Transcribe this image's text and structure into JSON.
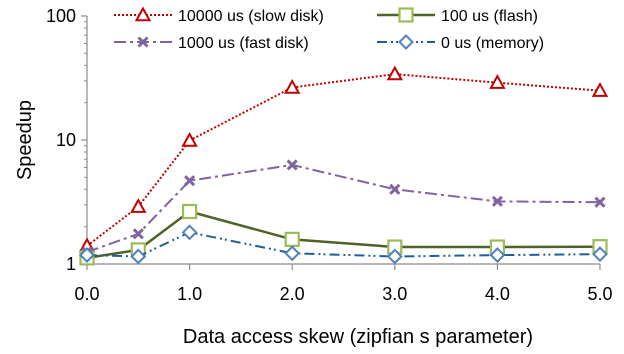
{
  "chart_data": {
    "type": "line",
    "title": "",
    "xlabel": "Data access skew (zipfian s parameter)",
    "ylabel": "Speedup",
    "x": [
      0.0,
      0.5,
      1.0,
      2.0,
      3.0,
      4.0,
      5.0
    ],
    "x_tick_labels": [
      "0.0",
      "1.0",
      "2.0",
      "3.0",
      "4.0",
      "5.0"
    ],
    "x_tick_values": [
      0,
      1,
      2,
      3,
      4,
      5
    ],
    "xlim": [
      0,
      5
    ],
    "y_scale": "log",
    "ylim": [
      1,
      100
    ],
    "y_tick_labels": [
      "1",
      "10",
      "100"
    ],
    "y_tick_values": [
      1,
      10,
      100
    ],
    "grid": false,
    "legend_position": "top",
    "series": [
      {
        "name": "10000 us (slow disk)",
        "values": [
          1.4,
          2.9,
          9.9,
          26.5,
          34.0,
          29.0,
          25.0
        ],
        "color": "#c00000",
        "marker": "triangle",
        "dash": "dotted"
      },
      {
        "name": "100 us (flash)",
        "values": [
          1.12,
          1.3,
          2.65,
          1.58,
          1.37,
          1.37,
          1.38
        ],
        "color": "#4f6228",
        "marker_color": "#9bbb59",
        "marker": "square",
        "dash": "solid"
      },
      {
        "name": "1000 us (fast disk)",
        "values": [
          1.25,
          1.75,
          4.7,
          6.3,
          4.0,
          3.2,
          3.15
        ],
        "color": "#8064a2",
        "marker": "x",
        "dash": "dash-dot"
      },
      {
        "name": "0 us (memory)",
        "values": [
          1.18,
          1.15,
          1.8,
          1.22,
          1.15,
          1.18,
          1.2
        ],
        "color": "#1f5f99",
        "marker_color": "#4f81bd",
        "marker": "diamond",
        "dash": "dash-dot-dot"
      }
    ]
  }
}
